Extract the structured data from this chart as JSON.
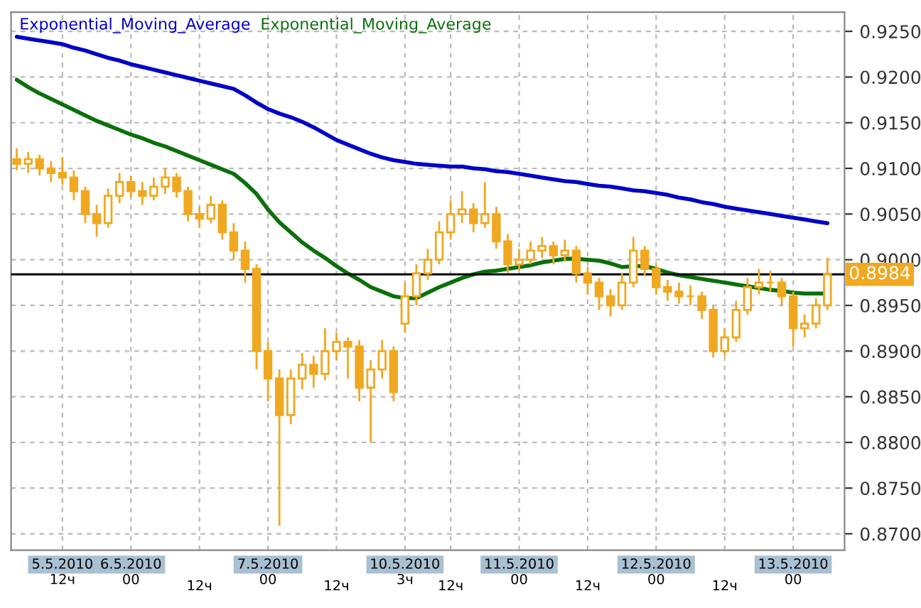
{
  "chart_data": {
    "type": "candlestick",
    "categories": [
      null,
      null,
      null,
      null,
      "5.5.2010\n12ч",
      null,
      null,
      null,
      null,
      null,
      "6.5.2010\n00",
      null,
      null,
      null,
      null,
      null,
      "12ч",
      null,
      null,
      null,
      null,
      null,
      "7.5.2010\n00",
      null,
      null,
      null,
      null,
      null,
      "12ч",
      null,
      null,
      null,
      null,
      null,
      "10.5.2010\n3ч",
      null,
      null,
      null,
      "12ч",
      null,
      null,
      null,
      null,
      null,
      "11.5.2010\n00",
      null,
      null,
      null,
      null,
      null,
      "12ч",
      null,
      null,
      null,
      null,
      null,
      "12.5.2010\n00",
      null,
      null,
      null,
      null,
      null,
      "12ч",
      null,
      null,
      null,
      null,
      null,
      "13.5.2010\n00",
      null,
      null,
      null
    ],
    "ohlc": [
      [
        0.911,
        0.9122,
        0.9098,
        0.9105
      ],
      [
        0.9105,
        0.9118,
        0.9095,
        0.911
      ],
      [
        0.911,
        0.9115,
        0.9092,
        0.91
      ],
      [
        0.91,
        0.9108,
        0.9085,
        0.9095
      ],
      [
        0.9095,
        0.9112,
        0.9082,
        0.909
      ],
      [
        0.909,
        0.9098,
        0.9065,
        0.9075
      ],
      [
        0.9075,
        0.908,
        0.904,
        0.905
      ],
      [
        0.905,
        0.906,
        0.9025,
        0.904
      ],
      [
        0.904,
        0.9078,
        0.9035,
        0.907
      ],
      [
        0.907,
        0.9095,
        0.9062,
        0.9085
      ],
      [
        0.9085,
        0.9092,
        0.9068,
        0.9075
      ],
      [
        0.9075,
        0.9085,
        0.906,
        0.907
      ],
      [
        0.907,
        0.909,
        0.9065,
        0.908
      ],
      [
        0.908,
        0.91,
        0.9072,
        0.909
      ],
      [
        0.909,
        0.9095,
        0.9068,
        0.9075
      ],
      [
        0.9075,
        0.908,
        0.9042,
        0.905
      ],
      [
        0.905,
        0.9058,
        0.9035,
        0.9045
      ],
      [
        0.9045,
        0.907,
        0.904,
        0.906
      ],
      [
        0.906,
        0.9065,
        0.9022,
        0.903
      ],
      [
        0.903,
        0.904,
        0.9,
        0.901
      ],
      [
        0.901,
        0.902,
        0.8975,
        0.899
      ],
      [
        0.899,
        0.8995,
        0.888,
        0.89
      ],
      [
        0.89,
        0.891,
        0.8845,
        0.887
      ],
      [
        0.887,
        0.888,
        0.8709,
        0.883
      ],
      [
        0.883,
        0.888,
        0.882,
        0.887
      ],
      [
        0.887,
        0.8898,
        0.8858,
        0.8885
      ],
      [
        0.8885,
        0.8895,
        0.886,
        0.8875
      ],
      [
        0.8875,
        0.8925,
        0.8868,
        0.89
      ],
      [
        0.89,
        0.892,
        0.889,
        0.891
      ],
      [
        0.891,
        0.8915,
        0.887,
        0.8905
      ],
      [
        0.8905,
        0.8912,
        0.8845,
        0.886
      ],
      [
        0.886,
        0.889,
        0.88,
        0.888
      ],
      [
        0.888,
        0.8912,
        0.887,
        0.89
      ],
      [
        0.89,
        0.8905,
        0.8845,
        0.8855
      ],
      [
        0.893,
        0.8975,
        0.892,
        0.896
      ],
      [
        0.896,
        0.8995,
        0.895,
        0.8985
      ],
      [
        0.8985,
        0.9012,
        0.8978,
        0.9
      ],
      [
        0.9,
        0.9042,
        0.8995,
        0.903
      ],
      [
        0.903,
        0.9065,
        0.9022,
        0.905
      ],
      [
        0.905,
        0.9075,
        0.904,
        0.9055
      ],
      [
        0.9055,
        0.9062,
        0.903,
        0.904
      ],
      [
        0.904,
        0.9085,
        0.9035,
        0.905
      ],
      [
        0.905,
        0.9058,
        0.9012,
        0.902
      ],
      [
        0.902,
        0.9028,
        0.8985,
        0.8995
      ],
      [
        0.8995,
        0.9012,
        0.8988,
        0.9
      ],
      [
        0.9,
        0.902,
        0.8995,
        0.901
      ],
      [
        0.901,
        0.9025,
        0.9002,
        0.9015
      ],
      [
        0.9015,
        0.902,
        0.8995,
        0.9005
      ],
      [
        0.9005,
        0.9022,
        0.8998,
        0.901
      ],
      [
        0.901,
        0.9015,
        0.8975,
        0.8985
      ],
      [
        0.8985,
        0.8992,
        0.8962,
        0.8975
      ],
      [
        0.8975,
        0.898,
        0.8945,
        0.896
      ],
      [
        0.896,
        0.8968,
        0.8938,
        0.895
      ],
      [
        0.895,
        0.8985,
        0.8945,
        0.8975
      ],
      [
        0.8975,
        0.9025,
        0.897,
        0.901
      ],
      [
        0.901,
        0.9015,
        0.8982,
        0.899
      ],
      [
        0.899,
        0.8995,
        0.8962,
        0.897
      ],
      [
        0.897,
        0.8978,
        0.8955,
        0.8965
      ],
      [
        0.8965,
        0.8975,
        0.8952,
        0.896
      ],
      [
        0.896,
        0.8972,
        0.895,
        0.896
      ],
      [
        0.896,
        0.8965,
        0.8935,
        0.8945
      ],
      [
        0.8945,
        0.895,
        0.8893,
        0.89
      ],
      [
        0.89,
        0.8925,
        0.8895,
        0.8915
      ],
      [
        0.8915,
        0.8955,
        0.891,
        0.8945
      ],
      [
        0.8945,
        0.898,
        0.894,
        0.897
      ],
      [
        0.897,
        0.899,
        0.8962,
        0.8975
      ],
      [
        0.8975,
        0.8988,
        0.8965,
        0.8975
      ],
      [
        0.8975,
        0.898,
        0.895,
        0.896
      ],
      [
        0.896,
        0.8965,
        0.8905,
        0.8925
      ],
      [
        0.8925,
        0.894,
        0.8915,
        0.893
      ],
      [
        0.893,
        0.8958,
        0.8925,
        0.895
      ],
      [
        0.895,
        0.9002,
        0.8945,
        0.8984
      ]
    ],
    "color": "#f0a820",
    "series": [
      {
        "name": "Exponential_Moving_Average",
        "type": "line",
        "color": "#0000c8",
        "values": [
          0.9244,
          0.9242,
          0.924,
          0.9238,
          0.9236,
          0.9232,
          0.9229,
          0.9225,
          0.9221,
          0.9218,
          0.9214,
          0.9211,
          0.9208,
          0.9205,
          0.9202,
          0.9199,
          0.9196,
          0.9193,
          0.919,
          0.9187,
          0.918,
          0.9172,
          0.9165,
          0.916,
          0.9156,
          0.9151,
          0.9145,
          0.9138,
          0.9131,
          0.9126,
          0.9121,
          0.9116,
          0.9112,
          0.9109,
          0.9107,
          0.9105,
          0.9104,
          0.9103,
          0.9102,
          0.9102,
          0.91,
          0.9099,
          0.9097,
          0.9096,
          0.9094,
          0.9092,
          0.909,
          0.9088,
          0.9086,
          0.9085,
          0.9083,
          0.9081,
          0.908,
          0.9078,
          0.9076,
          0.9075,
          0.9073,
          0.9071,
          0.9068,
          0.9066,
          0.9063,
          0.9061,
          0.9058,
          0.9056,
          0.9054,
          0.9052,
          0.905,
          0.9048,
          0.9046,
          0.9044,
          0.9042,
          0.904
        ]
      },
      {
        "name": "Exponential_Moving_Average",
        "type": "line",
        "color": "#0a700a",
        "values": [
          0.9197,
          0.9189,
          0.9182,
          0.9176,
          0.917,
          0.9164,
          0.9158,
          0.9152,
          0.9147,
          0.9142,
          0.9137,
          0.9133,
          0.9128,
          0.9124,
          0.9119,
          0.9114,
          0.9109,
          0.9104,
          0.9099,
          0.9094,
          0.9084,
          0.9072,
          0.9055,
          0.9041,
          0.903,
          0.9019,
          0.901,
          0.9002,
          0.8993,
          0.8985,
          0.8978,
          0.897,
          0.8965,
          0.896,
          0.8958,
          0.8958,
          0.8964,
          0.897,
          0.8975,
          0.898,
          0.8984,
          0.8987,
          0.8988,
          0.899,
          0.8992,
          0.8994,
          0.8997,
          0.8999,
          0.9001,
          0.9001,
          0.9,
          0.8999,
          0.8996,
          0.8992,
          0.8993,
          0.8993,
          0.899,
          0.8986,
          0.8983,
          0.8981,
          0.8979,
          0.8977,
          0.8975,
          0.8973,
          0.8971,
          0.8969,
          0.8967,
          0.8966,
          0.8964,
          0.8963,
          0.8963,
          0.8963
        ]
      }
    ],
    "ylim": [
      0.8682,
      0.9271
    ],
    "yticks": [
      {
        "value": 0.87,
        "label": "0.8700"
      },
      {
        "value": 0.875,
        "label": "0.8750"
      },
      {
        "value": 0.88,
        "label": "0.8800"
      },
      {
        "value": 0.885,
        "label": "0.8850"
      },
      {
        "value": 0.89,
        "label": "0.8900"
      },
      {
        "value": 0.895,
        "label": "0.8950"
      },
      {
        "value": 0.9,
        "label": "0.9000"
      },
      {
        "value": 0.905,
        "label": "0.9050"
      },
      {
        "value": 0.91,
        "label": "0.9100"
      },
      {
        "value": 0.915,
        "label": "0.9150"
      },
      {
        "value": 0.92,
        "label": "0.9200"
      },
      {
        "value": 0.925,
        "label": "0.9250"
      }
    ],
    "ref_lines": [
      {
        "axis": "y",
        "value": 0.8984,
        "label": "0.8984",
        "color": "#000000"
      }
    ],
    "grid": true,
    "legend": "top left"
  }
}
